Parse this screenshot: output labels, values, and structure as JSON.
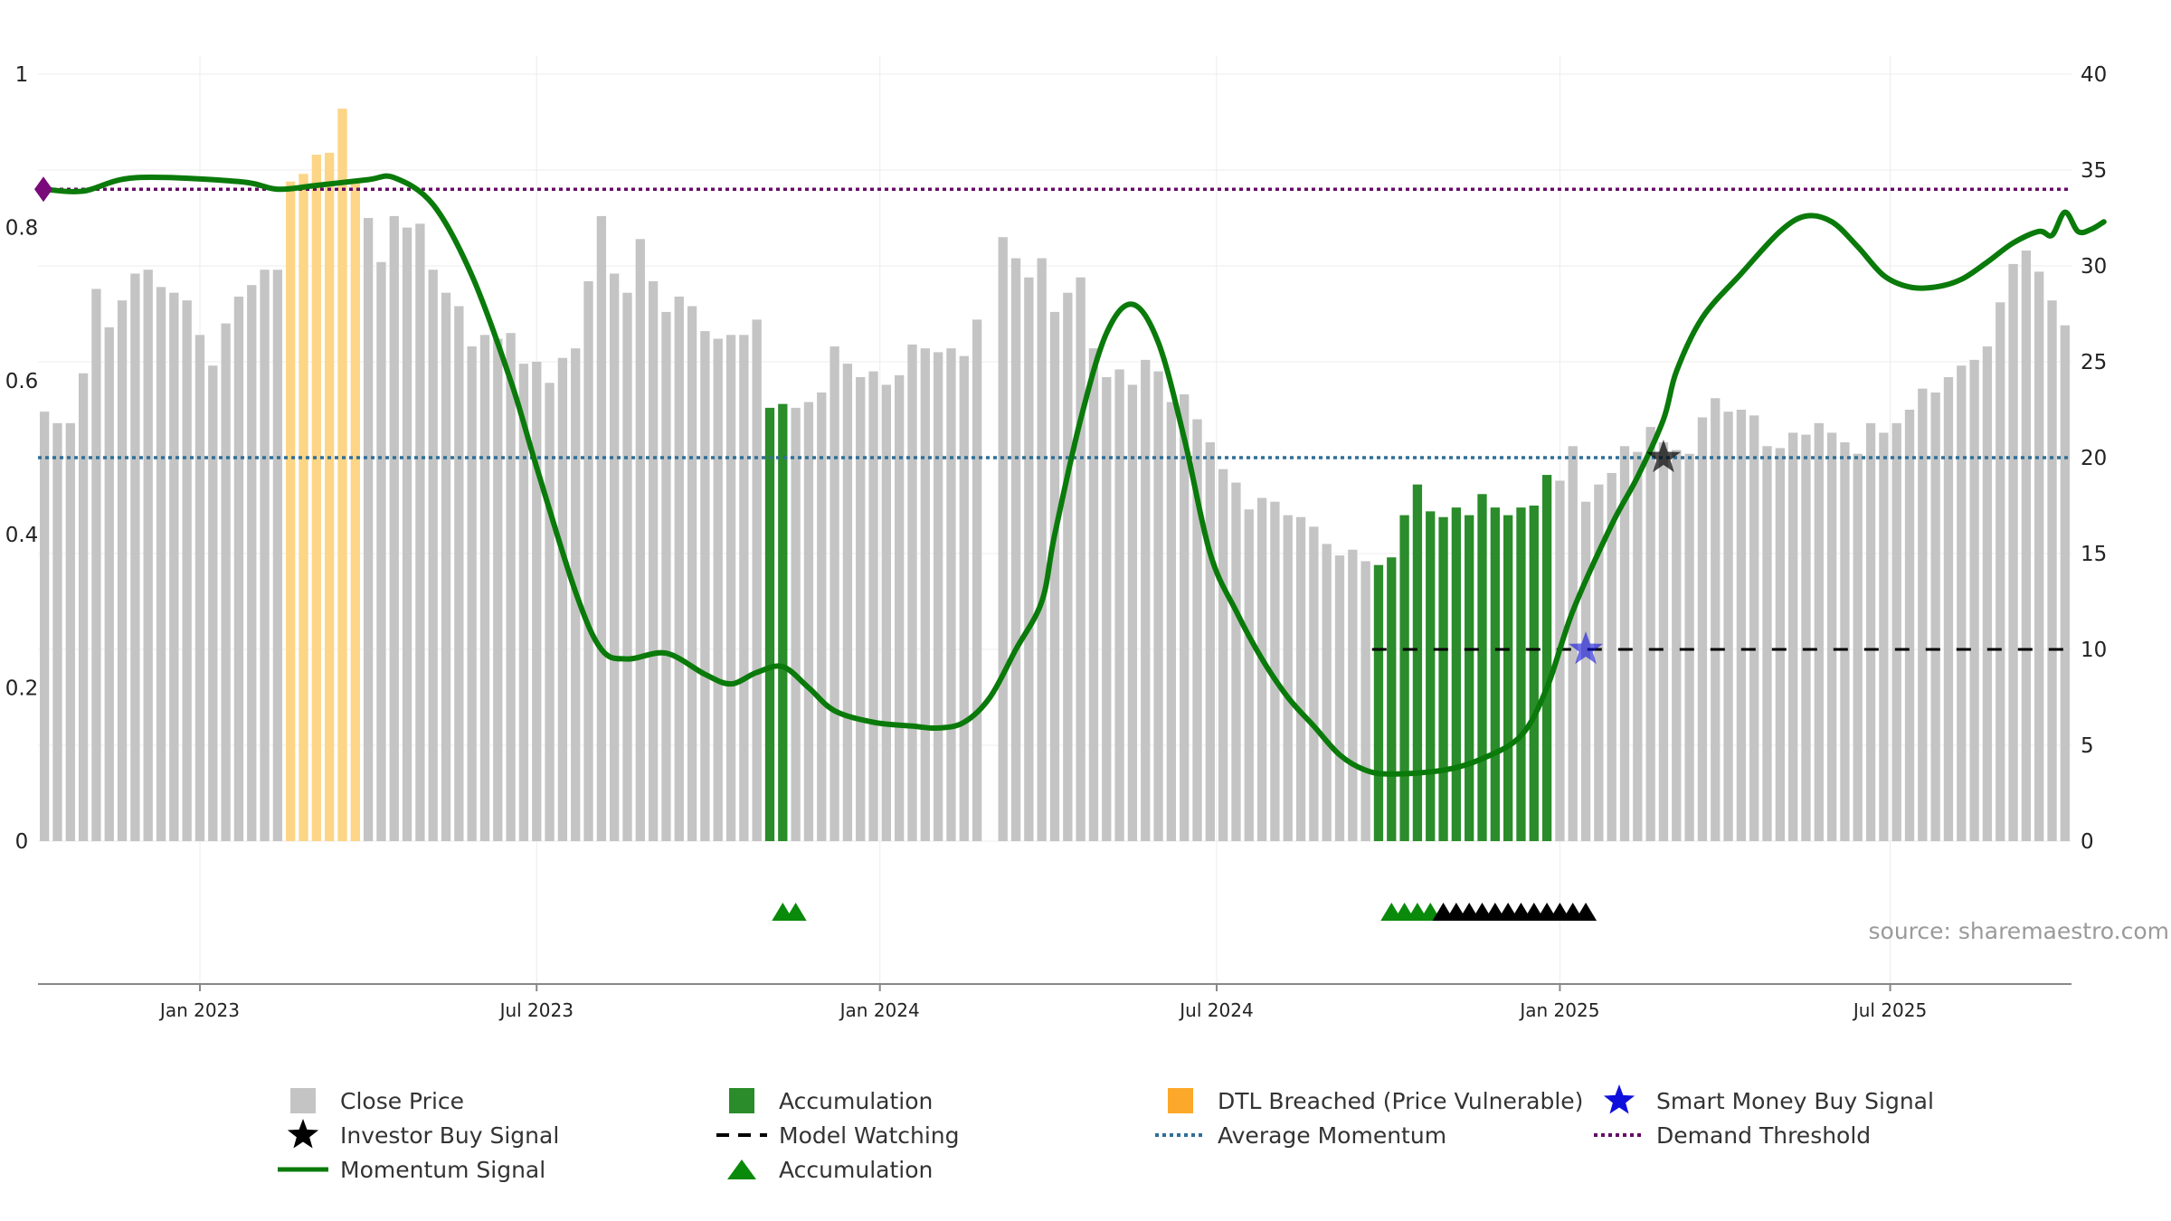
{
  "source": "source: sharemaestro.com",
  "legend": [
    {
      "key": "close",
      "label": "Close Price",
      "icon": "grey-square"
    },
    {
      "key": "acc_bar",
      "label": "Accumulation",
      "icon": "green-square"
    },
    {
      "key": "dtl",
      "label": "DTL Breached (Price Vulnerable)",
      "icon": "orange-square"
    },
    {
      "key": "smart",
      "label": "Smart Money Buy Signal",
      "icon": "blue-star"
    },
    {
      "key": "investor",
      "label": "Investor Buy Signal",
      "icon": "black-star"
    },
    {
      "key": "watching",
      "label": "Model Watching",
      "icon": "black-dash"
    },
    {
      "key": "avgmom",
      "label": "Average Momentum",
      "icon": "blue-dotted"
    },
    {
      "key": "demand",
      "label": "Demand Threshold",
      "icon": "purple-dotted"
    },
    {
      "key": "momentum",
      "label": "Momentum Signal",
      "icon": "green-line"
    },
    {
      "key": "acc_tri",
      "label": "Accumulation",
      "icon": "green-triangle"
    }
  ],
  "chart_data": {
    "type": "bar",
    "left_axis": {
      "ticks": [
        "0",
        "0.2",
        "0.4",
        "0.6",
        "0.8",
        "1"
      ],
      "range": [
        0,
        1
      ]
    },
    "right_axis": {
      "ticks": [
        "0",
        "5",
        "10",
        "15",
        "20",
        "25",
        "30",
        "35",
        "40"
      ],
      "range": [
        0,
        40
      ]
    },
    "date_ticks": [
      "Jan 2023",
      "Jul 2023",
      "Jan 2024",
      "Jul 2024",
      "Jan 2025",
      "Jul 2025"
    ],
    "close_price": [
      22.4,
      21.8,
      21.8,
      24.4,
      28.8,
      26.8,
      28.2,
      29.6,
      29.8,
      28.9,
      28.6,
      28.2,
      26.4,
      24.8,
      27.0,
      28.4,
      29.0,
      29.8,
      29.8,
      34.4,
      34.8,
      35.8,
      35.9,
      38.2,
      34.4,
      32.5,
      30.2,
      32.6,
      32.0,
      32.2,
      29.8,
      28.6,
      27.9,
      25.8,
      26.4,
      26.2,
      26.5,
      24.9,
      25.0,
      23.9,
      25.2,
      25.7,
      29.2,
      32.6,
      29.6,
      28.6,
      31.4,
      29.2,
      27.6,
      28.4,
      27.9,
      26.6,
      26.2,
      26.4,
      26.4,
      27.2,
      22.6,
      22.8,
      22.6,
      22.9,
      23.4,
      25.8,
      24.9,
      24.2,
      24.5,
      23.8,
      24.3,
      25.9,
      25.7,
      25.5,
      25.7,
      25.3,
      27.2,
      null,
      31.5,
      30.4,
      29.4,
      30.4,
      27.6,
      28.6,
      29.4,
      25.7,
      24.2,
      24.6,
      23.8,
      25.1,
      24.5,
      22.9,
      23.3,
      22.0,
      20.8,
      19.4,
      18.7,
      17.3,
      17.9,
      17.7,
      17.0,
      16.9,
      16.4,
      15.5,
      14.9,
      15.2,
      14.6,
      14.4,
      14.8,
      17.0,
      18.6,
      17.2,
      16.9,
      17.4,
      17.0,
      18.1,
      17.4,
      17.0,
      17.4,
      17.5,
      19.1,
      18.8,
      20.6,
      17.7,
      18.6,
      19.2,
      20.6,
      20.3,
      21.6,
      20.8,
      20.4,
      20.2,
      22.1,
      23.1,
      22.4,
      22.5,
      22.2,
      20.6,
      20.5,
      21.3,
      21.2,
      21.8,
      21.3,
      20.8,
      20.2,
      21.8,
      21.3,
      21.8,
      22.5,
      23.6,
      23.4,
      24.2,
      24.8,
      25.1,
      25.8,
      28.1,
      30.1,
      30.8,
      29.7,
      28.2,
      26.9
    ],
    "dtl_breached_range": [
      19,
      24
    ],
    "accumulation_ranges": [
      [
        56,
        57
      ],
      [
        103,
        116
      ]
    ],
    "momentum": [
      [
        0,
        34.0
      ],
      [
        3,
        33.9
      ],
      [
        7,
        34.6
      ],
      [
        15,
        34.4
      ],
      [
        18,
        34.0
      ],
      [
        21,
        34.2
      ],
      [
        25,
        34.5
      ],
      [
        27,
        34.6
      ],
      [
        30,
        33.2
      ],
      [
        33,
        29.5
      ],
      [
        36,
        24.0
      ],
      [
        38,
        19.5
      ],
      [
        41,
        13.0
      ],
      [
        43,
        10.0
      ],
      [
        45,
        9.5
      ],
      [
        48,
        9.8
      ],
      [
        51,
        8.7
      ],
      [
        53,
        8.2
      ],
      [
        55,
        8.8
      ],
      [
        57,
        9.1
      ],
      [
        59,
        8.0
      ],
      [
        61,
        6.8
      ],
      [
        64,
        6.2
      ],
      [
        67,
        6.0
      ],
      [
        69,
        5.9
      ],
      [
        71,
        6.2
      ],
      [
        73,
        7.5
      ],
      [
        75,
        10.0
      ],
      [
        77,
        12.5
      ],
      [
        78,
        16.0
      ],
      [
        80,
        22.0
      ],
      [
        82,
        26.5
      ],
      [
        84,
        28.0
      ],
      [
        86,
        26.0
      ],
      [
        88,
        21.0
      ],
      [
        90,
        15.0
      ],
      [
        92,
        12.0
      ],
      [
        94,
        9.5
      ],
      [
        96,
        7.5
      ],
      [
        98,
        6.0
      ],
      [
        100,
        4.5
      ],
      [
        102,
        3.7
      ],
      [
        104,
        3.5
      ],
      [
        108,
        3.7
      ],
      [
        111,
        4.3
      ],
      [
        114,
        5.5
      ],
      [
        116,
        8.0
      ],
      [
        118,
        12.0
      ],
      [
        121,
        16.5
      ],
      [
        123,
        19.0
      ],
      [
        125,
        22.0
      ],
      [
        126,
        24.5
      ],
      [
        128,
        27.3
      ],
      [
        131,
        29.6
      ],
      [
        134,
        31.8
      ],
      [
        136,
        32.6
      ],
      [
        138,
        32.3
      ],
      [
        140,
        31.0
      ],
      [
        142,
        29.5
      ],
      [
        144,
        28.9
      ],
      [
        146,
        28.9
      ],
      [
        148,
        29.3
      ],
      [
        150,
        30.2
      ],
      [
        152,
        31.2
      ],
      [
        154,
        31.8
      ],
      [
        155,
        31.6
      ],
      [
        156,
        32.8
      ],
      [
        157,
        31.8
      ],
      [
        158,
        31.9
      ],
      [
        159,
        32.3
      ]
    ],
    "average_momentum": 20,
    "demand_threshold": 34,
    "model_watching": {
      "level": 10,
      "start_index": 103
    },
    "smart_money_buy": [
      {
        "index": 119,
        "value": 10
      }
    ],
    "investor_buy": [
      {
        "index": 125,
        "value": 20
      }
    ],
    "accumulation_markers": {
      "green": [
        57,
        58,
        104,
        105,
        106,
        107
      ],
      "black": [
        108,
        109,
        110,
        111,
        112,
        113,
        114,
        115,
        116,
        117,
        118,
        119
      ]
    },
    "colors": {
      "close": "#c4c4c4",
      "accumulation": "#2a8c2a",
      "dtl": "#fcd587",
      "momentum": "#0a7a0a",
      "average": "#2f6f97",
      "demand": "#660b66",
      "watching": "#000000",
      "smart": "#1010dd",
      "investor": "#000000"
    },
    "grid": true
  }
}
